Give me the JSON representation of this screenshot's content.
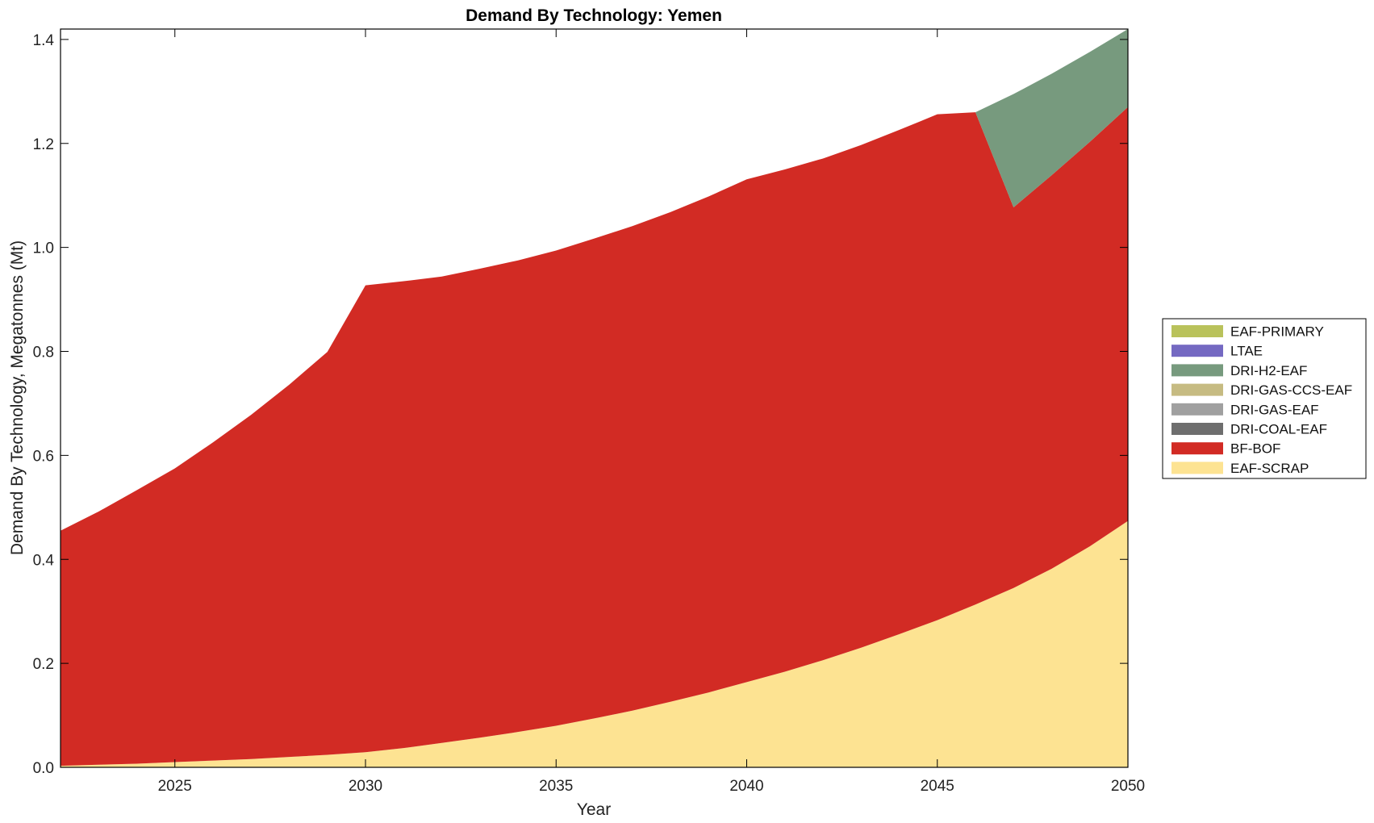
{
  "chart_data": {
    "type": "area",
    "title": "Demand By Technology: Yemen",
    "xlabel": "Year",
    "ylabel": "Demand By Technology, Megatonnes (Mt)",
    "xlim": [
      2022,
      2050
    ],
    "ylim": [
      0,
      1.42
    ],
    "xticks": [
      "2025",
      "2030",
      "2035",
      "2040",
      "2045",
      "2050"
    ],
    "yticks": [
      "0.0",
      "0.2",
      "0.4",
      "0.6",
      "0.8",
      "1.0",
      "1.2",
      "1.4"
    ],
    "grid": false,
    "legend_position": "right",
    "stacked": true,
    "x": [
      2022,
      2023,
      2024,
      2025,
      2026,
      2027,
      2028,
      2029,
      2030,
      2031,
      2032,
      2033,
      2034,
      2035,
      2036,
      2037,
      2038,
      2039,
      2040,
      2041,
      2042,
      2043,
      2044,
      2045,
      2046,
      2047,
      2048,
      2049,
      2050
    ],
    "series": [
      {
        "name": "EAF-SCRAP",
        "color": "#fde392",
        "values": [
          0.003,
          0.005,
          0.007,
          0.01,
          0.013,
          0.016,
          0.02,
          0.024,
          0.029,
          0.037,
          0.047,
          0.057,
          0.068,
          0.08,
          0.094,
          0.109,
          0.126,
          0.144,
          0.164,
          0.184,
          0.206,
          0.23,
          0.256,
          0.283,
          0.313,
          0.345,
          0.382,
          0.425,
          0.474
        ]
      },
      {
        "name": "BF-BOF",
        "color": "#d22b24",
        "values": [
          0.452,
          0.487,
          0.526,
          0.565,
          0.612,
          0.662,
          0.716,
          0.775,
          0.898,
          0.898,
          0.897,
          0.902,
          0.907,
          0.914,
          0.923,
          0.932,
          0.942,
          0.954,
          0.967,
          0.966,
          0.965,
          0.967,
          0.97,
          0.973,
          0.947,
          0.732,
          0.757,
          0.778,
          0.796
        ]
      },
      {
        "name": "DRI-COAL-EAF",
        "color": "#6e6e6e",
        "values": [
          0,
          0,
          0,
          0,
          0,
          0,
          0,
          0,
          0,
          0,
          0,
          0,
          0,
          0,
          0,
          0,
          0,
          0,
          0,
          0,
          0,
          0,
          0,
          0,
          0,
          0,
          0,
          0,
          0
        ]
      },
      {
        "name": "DRI-GAS-EAF",
        "color": "#a0a0a0",
        "values": [
          0,
          0,
          0,
          0,
          0,
          0,
          0,
          0,
          0,
          0,
          0,
          0,
          0,
          0,
          0,
          0,
          0,
          0,
          0,
          0,
          0,
          0,
          0,
          0,
          0,
          0,
          0,
          0,
          0
        ]
      },
      {
        "name": "DRI-GAS-CCS-EAF",
        "color": "#c6bb82",
        "values": [
          0,
          0,
          0,
          0,
          0,
          0,
          0,
          0,
          0,
          0,
          0,
          0,
          0,
          0,
          0,
          0,
          0,
          0,
          0,
          0,
          0,
          0,
          0,
          0,
          0,
          0,
          0,
          0,
          0
        ]
      },
      {
        "name": "DRI-H2-EAF",
        "color": "#779a7e",
        "values": [
          0,
          0,
          0,
          0,
          0,
          0,
          0,
          0,
          0,
          0,
          0,
          0,
          0,
          0,
          0,
          0,
          0,
          0,
          0,
          0,
          0,
          0,
          0,
          0,
          0,
          0.218,
          0.195,
          0.173,
          0.15
        ]
      },
      {
        "name": "LTAE",
        "color": "#7469c2",
        "values": [
          0,
          0,
          0,
          0,
          0,
          0,
          0,
          0,
          0,
          0,
          0,
          0,
          0,
          0,
          0,
          0,
          0,
          0,
          0,
          0,
          0,
          0,
          0,
          0,
          0,
          0,
          0,
          0,
          0
        ]
      },
      {
        "name": "EAF-PRIMARY",
        "color": "#b9c25b",
        "values": [
          0,
          0,
          0,
          0,
          0,
          0,
          0,
          0,
          0,
          0,
          0,
          0,
          0,
          0,
          0,
          0,
          0,
          0,
          0,
          0,
          0,
          0,
          0,
          0,
          0,
          0,
          0,
          0,
          0
        ]
      }
    ],
    "legend_order": [
      "EAF-PRIMARY",
      "LTAE",
      "DRI-H2-EAF",
      "DRI-GAS-CCS-EAF",
      "DRI-GAS-EAF",
      "DRI-COAL-EAF",
      "BF-BOF",
      "EAF-SCRAP"
    ]
  }
}
